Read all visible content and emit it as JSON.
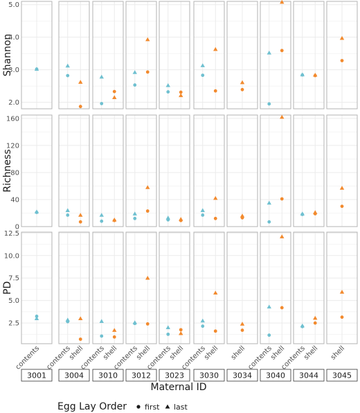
{
  "chart_data": {
    "type": "scatter",
    "xlabel": "Maternal ID",
    "legend": {
      "title": "Egg Lay Order",
      "placement": "bottom",
      "entries": [
        {
          "label": "first",
          "shape": "circle"
        },
        {
          "label": "last",
          "shape": "triangle"
        }
      ]
    },
    "colors": {
      "contents": "#6fc0d0",
      "shell": "#f28a2e"
    },
    "grid": true,
    "maternal_ids": [
      {
        "id": "3001",
        "categories": [
          "contents"
        ]
      },
      {
        "id": "3004",
        "categories": [
          "contents",
          "shell"
        ]
      },
      {
        "id": "3010",
        "categories": [
          "contents",
          "shell"
        ]
      },
      {
        "id": "3012",
        "categories": [
          "contents",
          "shell"
        ]
      },
      {
        "id": "3023",
        "categories": [
          "contents",
          "shell"
        ]
      },
      {
        "id": "3030",
        "categories": [
          "contents",
          "shell"
        ]
      },
      {
        "id": "3034",
        "categories": [
          "shell"
        ]
      },
      {
        "id": "3040",
        "categories": [
          "contents",
          "shell"
        ]
      },
      {
        "id": "3044",
        "categories": [
          "contents",
          "shell"
        ]
      },
      {
        "id": "3045",
        "categories": [
          "shell"
        ]
      }
    ],
    "panels": [
      {
        "metric": "Shannon",
        "ylim": [
          1.8,
          5.1
        ],
        "yticks": [
          2.0,
          3.0,
          4.0,
          5.0
        ],
        "tick_labels": [
          "2.0",
          "3.0",
          "4.0",
          "5.0"
        ],
        "points": [
          {
            "id": "3001",
            "cat": "contents",
            "order": "first",
            "y": 3.02
          },
          {
            "id": "3001",
            "cat": "contents",
            "order": "last",
            "y": 3.02
          },
          {
            "id": "3004",
            "cat": "contents",
            "order": "first",
            "y": 2.82
          },
          {
            "id": "3004",
            "cat": "contents",
            "order": "last",
            "y": 3.12
          },
          {
            "id": "3004",
            "cat": "shell",
            "order": "first",
            "y": 1.87
          },
          {
            "id": "3004",
            "cat": "shell",
            "order": "last",
            "y": 2.62
          },
          {
            "id": "3010",
            "cat": "contents",
            "order": "first",
            "y": 1.96
          },
          {
            "id": "3010",
            "cat": "contents",
            "order": "last",
            "y": 2.78
          },
          {
            "id": "3010",
            "cat": "shell",
            "order": "first",
            "y": 2.33
          },
          {
            "id": "3010",
            "cat": "shell",
            "order": "last",
            "y": 2.15
          },
          {
            "id": "3012",
            "cat": "contents",
            "order": "first",
            "y": 2.53
          },
          {
            "id": "3012",
            "cat": "contents",
            "order": "last",
            "y": 2.92
          },
          {
            "id": "3012",
            "cat": "shell",
            "order": "first",
            "y": 2.93
          },
          {
            "id": "3012",
            "cat": "shell",
            "order": "last",
            "y": 3.93
          },
          {
            "id": "3023",
            "cat": "contents",
            "order": "first",
            "y": 2.32
          },
          {
            "id": "3023",
            "cat": "contents",
            "order": "last",
            "y": 2.52
          },
          {
            "id": "3023",
            "cat": "shell",
            "order": "first",
            "y": 2.31
          },
          {
            "id": "3023",
            "cat": "shell",
            "order": "last",
            "y": 2.21
          },
          {
            "id": "3030",
            "cat": "contents",
            "order": "first",
            "y": 2.83
          },
          {
            "id": "3030",
            "cat": "contents",
            "order": "last",
            "y": 3.13
          },
          {
            "id": "3030",
            "cat": "shell",
            "order": "first",
            "y": 2.35
          },
          {
            "id": "3030",
            "cat": "shell",
            "order": "last",
            "y": 3.63
          },
          {
            "id": "3034",
            "cat": "shell",
            "order": "first",
            "y": 2.39
          },
          {
            "id": "3034",
            "cat": "shell",
            "order": "last",
            "y": 2.61
          },
          {
            "id": "3040",
            "cat": "contents",
            "order": "first",
            "y": 1.95
          },
          {
            "id": "3040",
            "cat": "contents",
            "order": "last",
            "y": 3.52
          },
          {
            "id": "3040",
            "cat": "shell",
            "order": "first",
            "y": 3.59
          },
          {
            "id": "3040",
            "cat": "shell",
            "order": "last",
            "y": 5.08
          },
          {
            "id": "3044",
            "cat": "contents",
            "order": "first",
            "y": 2.84
          },
          {
            "id": "3044",
            "cat": "contents",
            "order": "last",
            "y": 2.85
          },
          {
            "id": "3044",
            "cat": "shell",
            "order": "first",
            "y": 2.82
          },
          {
            "id": "3044",
            "cat": "shell",
            "order": "last",
            "y": 2.84
          },
          {
            "id": "3045",
            "cat": "shell",
            "order": "first",
            "y": 3.28
          },
          {
            "id": "3045",
            "cat": "shell",
            "order": "last",
            "y": 3.97
          }
        ]
      },
      {
        "metric": "Richness",
        "ylim": [
          0,
          165
        ],
        "yticks": [
          0,
          40,
          80,
          120,
          160
        ],
        "tick_labels": [
          "0",
          "40",
          "80",
          "120",
          "160"
        ],
        "points": [
          {
            "id": "3001",
            "cat": "contents",
            "order": "first",
            "y": 21
          },
          {
            "id": "3001",
            "cat": "contents",
            "order": "last",
            "y": 22
          },
          {
            "id": "3004",
            "cat": "contents",
            "order": "first",
            "y": 17
          },
          {
            "id": "3004",
            "cat": "contents",
            "order": "last",
            "y": 24
          },
          {
            "id": "3004",
            "cat": "shell",
            "order": "first",
            "y": 7
          },
          {
            "id": "3004",
            "cat": "shell",
            "order": "last",
            "y": 17
          },
          {
            "id": "3010",
            "cat": "contents",
            "order": "first",
            "y": 8
          },
          {
            "id": "3010",
            "cat": "contents",
            "order": "last",
            "y": 17
          },
          {
            "id": "3010",
            "cat": "shell",
            "order": "first",
            "y": 9
          },
          {
            "id": "3010",
            "cat": "shell",
            "order": "last",
            "y": 10
          },
          {
            "id": "3012",
            "cat": "contents",
            "order": "first",
            "y": 12
          },
          {
            "id": "3012",
            "cat": "contents",
            "order": "last",
            "y": 19
          },
          {
            "id": "3012",
            "cat": "shell",
            "order": "first",
            "y": 23
          },
          {
            "id": "3012",
            "cat": "shell",
            "order": "last",
            "y": 58
          },
          {
            "id": "3023",
            "cat": "contents",
            "order": "first",
            "y": 10
          },
          {
            "id": "3023",
            "cat": "contents",
            "order": "last",
            "y": 13
          },
          {
            "id": "3023",
            "cat": "shell",
            "order": "first",
            "y": 9
          },
          {
            "id": "3023",
            "cat": "shell",
            "order": "last",
            "y": 11
          },
          {
            "id": "3030",
            "cat": "contents",
            "order": "first",
            "y": 17
          },
          {
            "id": "3030",
            "cat": "contents",
            "order": "last",
            "y": 24
          },
          {
            "id": "3030",
            "cat": "shell",
            "order": "first",
            "y": 12
          },
          {
            "id": "3030",
            "cat": "shell",
            "order": "last",
            "y": 42
          },
          {
            "id": "3034",
            "cat": "shell",
            "order": "first",
            "y": 13
          },
          {
            "id": "3034",
            "cat": "shell",
            "order": "last",
            "y": 16
          },
          {
            "id": "3040",
            "cat": "contents",
            "order": "first",
            "y": 7
          },
          {
            "id": "3040",
            "cat": "contents",
            "order": "last",
            "y": 35
          },
          {
            "id": "3040",
            "cat": "shell",
            "order": "first",
            "y": 41
          },
          {
            "id": "3040",
            "cat": "shell",
            "order": "last",
            "y": 162
          },
          {
            "id": "3044",
            "cat": "contents",
            "order": "first",
            "y": 18
          },
          {
            "id": "3044",
            "cat": "contents",
            "order": "last",
            "y": 19
          },
          {
            "id": "3044",
            "cat": "shell",
            "order": "first",
            "y": 19
          },
          {
            "id": "3044",
            "cat": "shell",
            "order": "last",
            "y": 21
          },
          {
            "id": "3045",
            "cat": "shell",
            "order": "first",
            "y": 30
          },
          {
            "id": "3045",
            "cat": "shell",
            "order": "last",
            "y": 57
          }
        ]
      },
      {
        "metric": "PD",
        "ylim": [
          0.2,
          12.6
        ],
        "yticks": [
          2.5,
          5.0,
          7.5,
          10.0,
          12.5
        ],
        "tick_labels": [
          "2.5",
          "5.0",
          "7.5",
          "10.0",
          "12.5"
        ],
        "points": [
          {
            "id": "3001",
            "cat": "contents",
            "order": "first",
            "y": 3.25
          },
          {
            "id": "3001",
            "cat": "contents",
            "order": "last",
            "y": 3.0
          },
          {
            "id": "3004",
            "cat": "contents",
            "order": "first",
            "y": 2.65
          },
          {
            "id": "3004",
            "cat": "contents",
            "order": "last",
            "y": 2.85
          },
          {
            "id": "3004",
            "cat": "shell",
            "order": "first",
            "y": 0.7
          },
          {
            "id": "3004",
            "cat": "shell",
            "order": "last",
            "y": 3.0
          },
          {
            "id": "3010",
            "cat": "contents",
            "order": "first",
            "y": 1.05
          },
          {
            "id": "3010",
            "cat": "contents",
            "order": "last",
            "y": 2.7
          },
          {
            "id": "3010",
            "cat": "shell",
            "order": "first",
            "y": 0.95
          },
          {
            "id": "3010",
            "cat": "shell",
            "order": "last",
            "y": 1.7
          },
          {
            "id": "3012",
            "cat": "contents",
            "order": "first",
            "y": 2.45
          },
          {
            "id": "3012",
            "cat": "contents",
            "order": "last",
            "y": 2.55
          },
          {
            "id": "3012",
            "cat": "shell",
            "order": "first",
            "y": 2.4
          },
          {
            "id": "3012",
            "cat": "shell",
            "order": "last",
            "y": 7.5
          },
          {
            "id": "3023",
            "cat": "contents",
            "order": "first",
            "y": 1.25
          },
          {
            "id": "3023",
            "cat": "contents",
            "order": "last",
            "y": 2.0
          },
          {
            "id": "3023",
            "cat": "shell",
            "order": "first",
            "y": 1.75
          },
          {
            "id": "3023",
            "cat": "shell",
            "order": "last",
            "y": 1.35
          },
          {
            "id": "3030",
            "cat": "contents",
            "order": "first",
            "y": 2.15
          },
          {
            "id": "3030",
            "cat": "contents",
            "order": "last",
            "y": 2.75
          },
          {
            "id": "3030",
            "cat": "shell",
            "order": "first",
            "y": 1.6
          },
          {
            "id": "3030",
            "cat": "shell",
            "order": "last",
            "y": 5.85
          },
          {
            "id": "3034",
            "cat": "shell",
            "order": "first",
            "y": 1.7
          },
          {
            "id": "3034",
            "cat": "shell",
            "order": "last",
            "y": 2.4
          },
          {
            "id": "3040",
            "cat": "contents",
            "order": "first",
            "y": 1.15
          },
          {
            "id": "3040",
            "cat": "contents",
            "order": "last",
            "y": 4.3
          },
          {
            "id": "3040",
            "cat": "shell",
            "order": "first",
            "y": 4.2
          },
          {
            "id": "3040",
            "cat": "shell",
            "order": "last",
            "y": 12.1
          },
          {
            "id": "3044",
            "cat": "contents",
            "order": "first",
            "y": 2.1
          },
          {
            "id": "3044",
            "cat": "contents",
            "order": "last",
            "y": 2.2
          },
          {
            "id": "3044",
            "cat": "shell",
            "order": "first",
            "y": 2.5
          },
          {
            "id": "3044",
            "cat": "shell",
            "order": "last",
            "y": 3.05
          },
          {
            "id": "3045",
            "cat": "shell",
            "order": "first",
            "y": 3.15
          },
          {
            "id": "3045",
            "cat": "shell",
            "order": "last",
            "y": 5.95
          }
        ]
      }
    ]
  }
}
